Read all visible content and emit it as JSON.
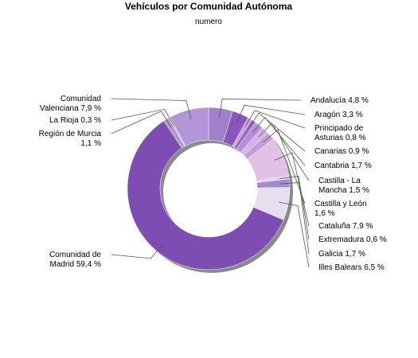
{
  "chart_data": {
    "type": "pie",
    "variant": "donut",
    "title": "Vehículos por Comunidad Autónoma",
    "subtitle": "numero",
    "unit": "%",
    "slices": [
      {
        "name": "Andalucía",
        "value": 4.8,
        "label_lines": [
          "Andalucía 4,8 %"
        ],
        "color": "#a07fcc"
      },
      {
        "name": "Aragón",
        "value": 3.3,
        "label_lines": [
          "Aragón 3,3 %"
        ],
        "color": "#8a55bc"
      },
      {
        "name": "Principado de Asturias",
        "value": 0.8,
        "label_lines": [
          "Principado de",
          "Asturias 0,8 %"
        ],
        "color": "#c3a3dd"
      },
      {
        "name": "Canarias",
        "value": 0.9,
        "label_lines": [
          "Canarias 0,9 %"
        ],
        "color": "#9a68c6"
      },
      {
        "name": "Cantabria",
        "value": 1.7,
        "label_lines": [
          "Cantabria 1,7 %"
        ],
        "color": "#b58ed6"
      },
      {
        "name": "Castilla - La Mancha",
        "value": 1.5,
        "label_lines": [
          "Castilla - La",
          "Mancha 1,5 %"
        ],
        "color": "#d2b5e6"
      },
      {
        "name": "Castilla y León",
        "value": 1.6,
        "label_lines": [
          "Castilla y León",
          "1,6 %"
        ],
        "color": "#c79bd9"
      },
      {
        "name": "Cataluña",
        "value": 7.9,
        "label_lines": [
          "Cataluña 7,9 %"
        ],
        "color": "#e2c1e5"
      },
      {
        "name": "Extremadura",
        "value": 0.6,
        "label_lines": [
          "Extremadura 0,6 %"
        ],
        "color": "#ddd0ec"
      },
      {
        "name": "Galicia",
        "value": 1.7,
        "label_lines": [
          "Galicia 1,7 %"
        ],
        "color": "#a58ad0"
      },
      {
        "name": "Illes Balears",
        "value": 6.5,
        "label_lines": [
          "Illes Balears 6,5 %"
        ],
        "color": "#e6dff0"
      },
      {
        "name": "Comunidad de Madrid",
        "value": 59.4,
        "label_lines": [
          "Comunidad de",
          "Madrid 59,4 %"
        ],
        "color": "#7d4db4"
      },
      {
        "name": "Región de Murcia",
        "value": 1.1,
        "label_lines": [
          "Región de Murcia",
          "1,1 %"
        ],
        "color": "#b19bd3"
      },
      {
        "name": "La Rioja",
        "value": 0.3,
        "label_lines": [
          "La Rioja 0,3 %"
        ],
        "color": "#cdb8e3"
      },
      {
        "name": "Comunidad Valenciana",
        "value": 7.9,
        "label_lines": [
          "Comunidad",
          "Valenciana 7,9 %"
        ],
        "color": "#b395d8"
      }
    ],
    "legend": "none"
  }
}
